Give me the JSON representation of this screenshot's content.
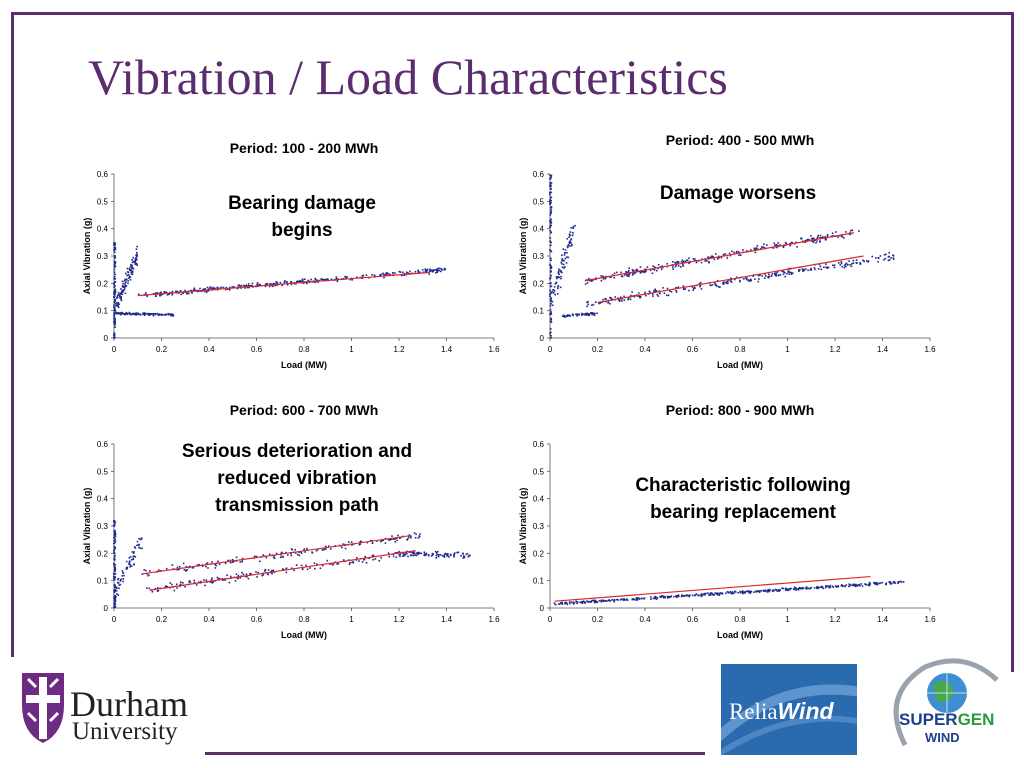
{
  "title": "Vibration / Load Characteristics",
  "logos": {
    "durham_name": "Durham",
    "durham_sub": "University",
    "reliawind_prefix": "Relia",
    "reliawind_suffix": "Wind",
    "supergen_a": "SUPER",
    "supergen_b": "GEN",
    "supergen_c": "WIND"
  },
  "colors": {
    "accent": "#5b2d6e",
    "points": "#1f2a8c",
    "trend": "#e0252b",
    "reliawind": "#2a6bb0"
  },
  "chart_data": [
    {
      "type": "scatter",
      "title": "Period: 100 - 200 MWh",
      "annotation": [
        "Bearing damage",
        "begins"
      ],
      "xlabel": "Load (MW)",
      "ylabel": "Axial Vibration (g)",
      "xlim": [
        0,
        1.6
      ],
      "ylim": [
        0,
        0.6
      ],
      "xticks": [
        "0",
        "0.2",
        "0.4",
        "0.6",
        "0.8",
        "1",
        "1.2",
        "1.4",
        "1.6"
      ],
      "yticks": [
        "0",
        "0.1",
        "0.2",
        "0.3",
        "0.4",
        "0.5",
        "0.6"
      ],
      "clusters": [
        {
          "x0": 0.1,
          "y0": 0.155,
          "x1": 1.4,
          "y1": 0.25,
          "spread": 0.012,
          "n": 360
        },
        {
          "x0": 0.0,
          "y0": 0.09,
          "x1": 0.25,
          "y1": 0.085,
          "spread": 0.006,
          "n": 110
        },
        {
          "x0": 0.0,
          "y0": 0.1,
          "x1": 0.1,
          "y1": 0.3,
          "spread": 0.05,
          "n": 120
        }
      ],
      "vertical_band": {
        "x": 0.0,
        "y_min": 0.0,
        "y_max": 0.36
      },
      "trendlines": [
        {
          "x": [
            0.1,
            1.33
          ],
          "y": [
            0.155,
            0.24
          ]
        }
      ]
    },
    {
      "type": "scatter",
      "title": "Period: 400 - 500 MWh",
      "annotation": [
        "Damage worsens"
      ],
      "xlabel": "Load (MW)",
      "ylabel": "Axial Vibration (g)",
      "xlim": [
        0,
        1.6
      ],
      "ylim": [
        0,
        0.6
      ],
      "xticks": [
        "0",
        "0.2",
        "0.4",
        "0.6",
        "0.8",
        "1",
        "1.2",
        "1.4",
        "1.6"
      ],
      "yticks": [
        "0",
        "0.1",
        "0.2",
        "0.3",
        "0.4",
        "0.5",
        "0.6"
      ],
      "clusters": [
        {
          "x0": 0.15,
          "y0": 0.21,
          "x1": 1.3,
          "y1": 0.39,
          "spread": 0.02,
          "n": 280
        },
        {
          "x0": 0.15,
          "y0": 0.125,
          "x1": 1.45,
          "y1": 0.3,
          "spread": 0.02,
          "n": 280
        },
        {
          "x0": 0.05,
          "y0": 0.08,
          "x1": 0.2,
          "y1": 0.09,
          "spread": 0.008,
          "n": 60
        },
        {
          "x0": 0.0,
          "y0": 0.12,
          "x1": 0.1,
          "y1": 0.4,
          "spread": 0.06,
          "n": 90
        }
      ],
      "vertical_band": {
        "x": 0.0,
        "y_min": 0.0,
        "y_max": 0.6
      },
      "trendlines": [
        {
          "x": [
            0.15,
            1.28
          ],
          "y": [
            0.21,
            0.385
          ]
        },
        {
          "x": [
            0.2,
            1.32
          ],
          "y": [
            0.13,
            0.3
          ]
        }
      ]
    },
    {
      "type": "scatter",
      "title": "Period: 600 - 700 MWh",
      "annotation": [
        "Serious deterioration and",
        "reduced vibration",
        "transmission path"
      ],
      "xlabel": "Load (MW)",
      "ylabel": "Axial Vibration (g)",
      "xlim": [
        0,
        1.6
      ],
      "ylim": [
        0,
        0.6
      ],
      "xticks": [
        "0",
        "0.2",
        "0.4",
        "0.6",
        "0.8",
        "1",
        "1.2",
        "1.4",
        "1.6"
      ],
      "yticks": [
        "0",
        "0.1",
        "0.2",
        "0.3",
        "0.4",
        "0.5",
        "0.6"
      ],
      "clusters": [
        {
          "x0": 0.12,
          "y0": 0.125,
          "x1": 1.3,
          "y1": 0.27,
          "spread": 0.02,
          "n": 180
        },
        {
          "x0": 0.12,
          "y0": 0.065,
          "x1": 1.3,
          "y1": 0.21,
          "spread": 0.02,
          "n": 180
        },
        {
          "x0": 1.2,
          "y0": 0.2,
          "x1": 1.5,
          "y1": 0.19,
          "spread": 0.015,
          "n": 80
        },
        {
          "x0": 0.0,
          "y0": 0.05,
          "x1": 0.12,
          "y1": 0.25,
          "spread": 0.05,
          "n": 70
        }
      ],
      "vertical_band": {
        "x": 0.0,
        "y_min": 0.0,
        "y_max": 0.32
      },
      "trendlines": [
        {
          "x": [
            0.12,
            1.25
          ],
          "y": [
            0.125,
            0.265
          ]
        },
        {
          "x": [
            0.15,
            1.27
          ],
          "y": [
            0.065,
            0.21
          ]
        }
      ]
    },
    {
      "type": "scatter",
      "title": "Period: 800 - 900 MWh",
      "annotation": [
        "Characteristic following",
        "bearing replacement"
      ],
      "xlabel": "Load (MW)",
      "ylabel": "Axial Vibration (g)",
      "xlim": [
        0,
        1.6
      ],
      "ylim": [
        0,
        0.6
      ],
      "xticks": [
        "0",
        "0.2",
        "0.4",
        "0.6",
        "0.8",
        "1",
        "1.2",
        "1.4",
        "1.6"
      ],
      "yticks": [
        "0",
        "0.1",
        "0.2",
        "0.3",
        "0.4",
        "0.5",
        "0.6"
      ],
      "clusters": [
        {
          "x0": 0.02,
          "y0": 0.015,
          "x1": 1.5,
          "y1": 0.095,
          "spread": 0.007,
          "n": 420
        }
      ],
      "trendlines": [
        {
          "x": [
            0.02,
            1.35
          ],
          "y": [
            0.025,
            0.115
          ]
        }
      ]
    }
  ]
}
